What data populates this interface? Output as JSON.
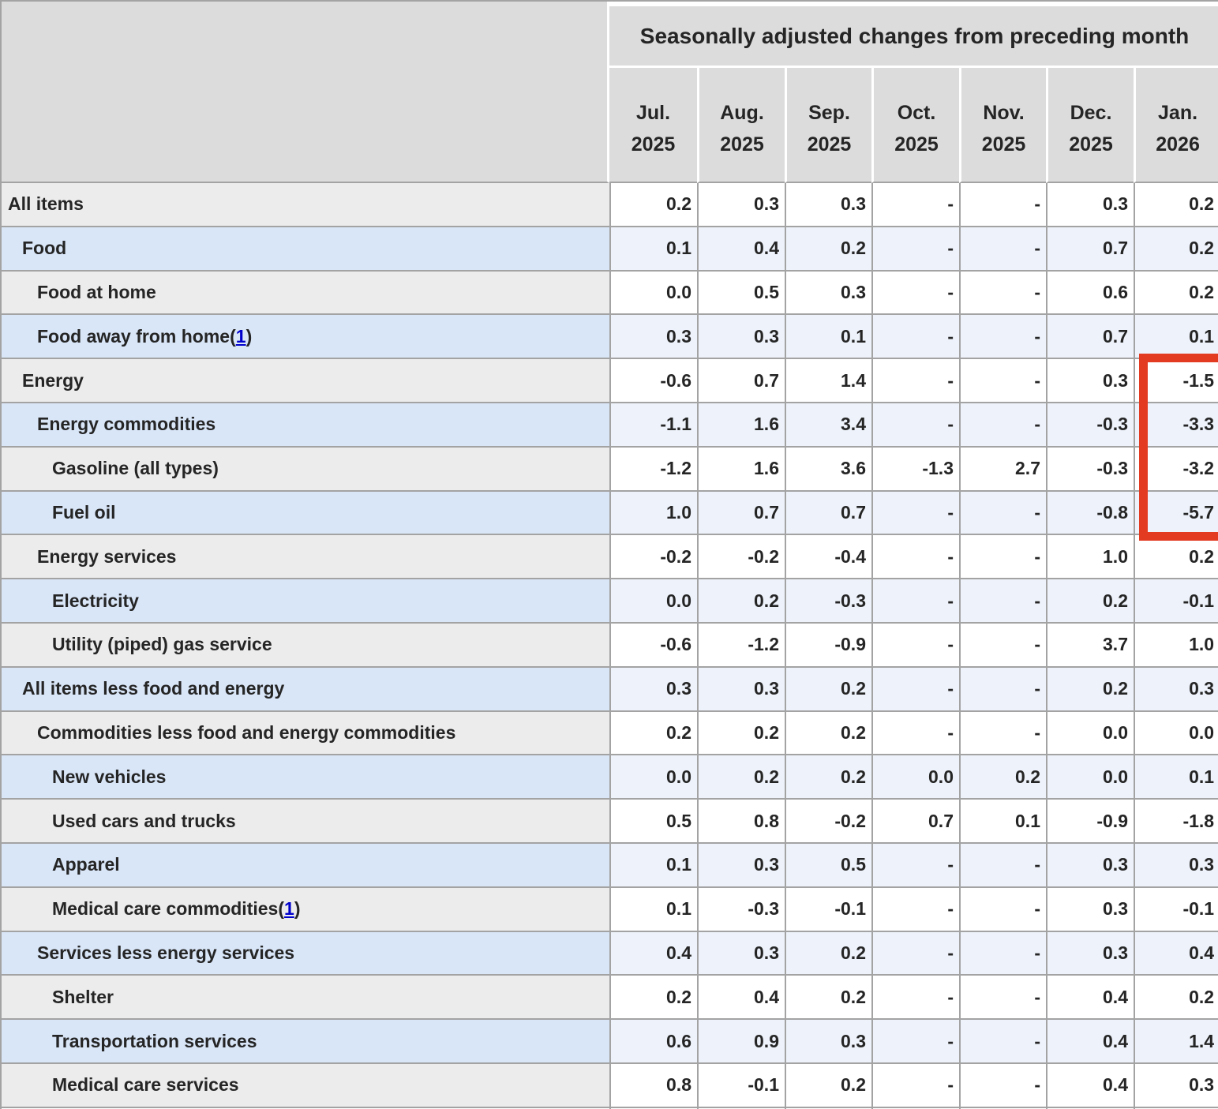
{
  "table": {
    "header_title": "Seasonally adjusted changes from preceding month",
    "footnote_symbol": "1",
    "columns": [
      {
        "month": "Jul.",
        "year": "2025"
      },
      {
        "month": "Aug.",
        "year": "2025"
      },
      {
        "month": "Sep.",
        "year": "2025"
      },
      {
        "month": "Oct.",
        "year": "2025"
      },
      {
        "month": "Nov.",
        "year": "2025"
      },
      {
        "month": "Dec.",
        "year": "2025"
      },
      {
        "month": "Jan.",
        "year": "2026"
      }
    ],
    "rows": [
      {
        "label": "All items",
        "indent": 0,
        "footnote": false,
        "values": [
          "0.2",
          "0.3",
          "0.3",
          "-",
          "-",
          "0.3",
          "0.2"
        ]
      },
      {
        "label": "Food",
        "indent": 1,
        "footnote": false,
        "values": [
          "0.1",
          "0.4",
          "0.2",
          "-",
          "-",
          "0.7",
          "0.2"
        ]
      },
      {
        "label": "Food at home",
        "indent": 2,
        "footnote": false,
        "values": [
          "0.0",
          "0.5",
          "0.3",
          "-",
          "-",
          "0.6",
          "0.2"
        ]
      },
      {
        "label": "Food away from home",
        "indent": 2,
        "footnote": true,
        "values": [
          "0.3",
          "0.3",
          "0.1",
          "-",
          "-",
          "0.7",
          "0.1"
        ]
      },
      {
        "label": "Energy",
        "indent": 1,
        "footnote": false,
        "values": [
          "-0.6",
          "0.7",
          "1.4",
          "-",
          "-",
          "0.3",
          "-1.5"
        ]
      },
      {
        "label": "Energy commodities",
        "indent": 2,
        "footnote": false,
        "values": [
          "-1.1",
          "1.6",
          "3.4",
          "-",
          "-",
          "-0.3",
          "-3.3"
        ]
      },
      {
        "label": "Gasoline (all types)",
        "indent": 3,
        "footnote": false,
        "values": [
          "-1.2",
          "1.6",
          "3.6",
          "-1.3",
          "2.7",
          "-0.3",
          "-3.2"
        ]
      },
      {
        "label": "Fuel oil",
        "indent": 3,
        "footnote": false,
        "values": [
          "1.0",
          "0.7",
          "0.7",
          "-",
          "-",
          "-0.8",
          "-5.7"
        ]
      },
      {
        "label": "Energy services",
        "indent": 2,
        "footnote": false,
        "values": [
          "-0.2",
          "-0.2",
          "-0.4",
          "-",
          "-",
          "1.0",
          "0.2"
        ]
      },
      {
        "label": "Electricity",
        "indent": 3,
        "footnote": false,
        "values": [
          "0.0",
          "0.2",
          "-0.3",
          "-",
          "-",
          "0.2",
          "-0.1"
        ]
      },
      {
        "label": "Utility (piped) gas service",
        "indent": 3,
        "footnote": false,
        "values": [
          "-0.6",
          "-1.2",
          "-0.9",
          "-",
          "-",
          "3.7",
          "1.0"
        ]
      },
      {
        "label": "All items less food and energy",
        "indent": 1,
        "footnote": false,
        "values": [
          "0.3",
          "0.3",
          "0.2",
          "-",
          "-",
          "0.2",
          "0.3"
        ]
      },
      {
        "label": "Commodities less food and energy commodities",
        "indent": 2,
        "footnote": false,
        "values": [
          "0.2",
          "0.2",
          "0.2",
          "-",
          "-",
          "0.0",
          "0.0"
        ]
      },
      {
        "label": "New vehicles",
        "indent": 3,
        "footnote": false,
        "values": [
          "0.0",
          "0.2",
          "0.2",
          "0.0",
          "0.2",
          "0.0",
          "0.1"
        ]
      },
      {
        "label": "Used cars and trucks",
        "indent": 3,
        "footnote": false,
        "values": [
          "0.5",
          "0.8",
          "-0.2",
          "0.7",
          "0.1",
          "-0.9",
          "-1.8"
        ]
      },
      {
        "label": "Apparel",
        "indent": 3,
        "footnote": false,
        "values": [
          "0.1",
          "0.3",
          "0.5",
          "-",
          "-",
          "0.3",
          "0.3"
        ]
      },
      {
        "label": "Medical care commodities",
        "indent": 3,
        "footnote": true,
        "values": [
          "0.1",
          "-0.3",
          "-0.1",
          "-",
          "-",
          "0.3",
          "-0.1"
        ]
      },
      {
        "label": "Services less energy services",
        "indent": 2,
        "footnote": false,
        "values": [
          "0.4",
          "0.3",
          "0.2",
          "-",
          "-",
          "0.3",
          "0.4"
        ]
      },
      {
        "label": "Shelter",
        "indent": 3,
        "footnote": false,
        "values": [
          "0.2",
          "0.4",
          "0.2",
          "-",
          "-",
          "0.4",
          "0.2"
        ]
      },
      {
        "label": "Transportation services",
        "indent": 3,
        "footnote": false,
        "values": [
          "0.6",
          "0.9",
          "0.3",
          "-",
          "-",
          "0.4",
          "1.4"
        ]
      },
      {
        "label": "Medical care services",
        "indent": 3,
        "footnote": false,
        "values": [
          "0.8",
          "-0.1",
          "0.2",
          "-",
          "-",
          "0.4",
          "0.3"
        ]
      }
    ]
  },
  "annotation": {
    "box_color": "#e23b22",
    "highlighted_column": "Jan. 2026",
    "highlighted_rows": [
      "Energy",
      "Energy commodities",
      "Gasoline (all types)",
      "Fuel oil"
    ],
    "highlighted_values": [
      "-1.5",
      "-3.3",
      "-3.2",
      "-5.7"
    ]
  }
}
